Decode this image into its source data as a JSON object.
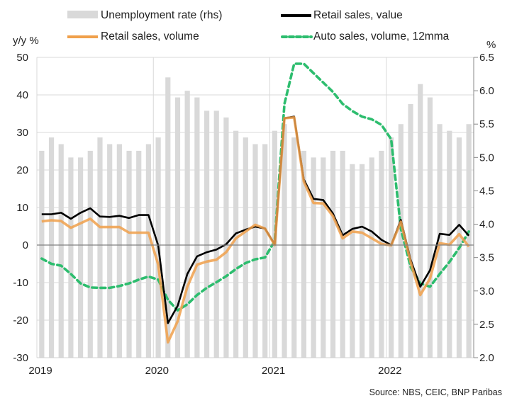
{
  "chart_data": {
    "type": "bar+line",
    "title": "",
    "source": "Source: NBS, CEIC, BNP Paribas",
    "left_axis": {
      "label": "y/y %",
      "range": [
        -30,
        50
      ],
      "ticks": [
        "50",
        "40",
        "30",
        "20",
        "10",
        "0",
        "-10",
        "-20",
        "-30"
      ]
    },
    "right_axis": {
      "label": "%",
      "range": [
        2.0,
        6.5
      ],
      "ticks": [
        "6.5",
        "6.0",
        "5.5",
        "5.0",
        "4.5",
        "4.0",
        "3.5",
        "3.0",
        "2.5",
        "2.0"
      ]
    },
    "x_axis": {
      "start": "2019-01",
      "months": 45,
      "tick_labels": [
        "2019",
        "2020",
        "2021",
        "2022"
      ]
    },
    "grid": true,
    "legend_placement": "top",
    "series": [
      {
        "name": "Unemployment rate (rhs)",
        "type": "bar",
        "axis": "right",
        "color": "#d9d9d9",
        "values": [
          5.1,
          5.3,
          5.2,
          5.0,
          5.0,
          5.1,
          5.3,
          5.2,
          5.2,
          5.1,
          5.1,
          5.2,
          5.3,
          6.2,
          5.9,
          6.0,
          5.9,
          5.7,
          5.7,
          5.6,
          5.4,
          5.3,
          5.2,
          5.2,
          5.4,
          5.5,
          5.3,
          5.1,
          5.0,
          5.0,
          5.1,
          5.1,
          4.9,
          4.9,
          5.0,
          5.1,
          5.3,
          5.5,
          5.8,
          6.1,
          5.9,
          5.5,
          5.4,
          5.3,
          5.5
        ]
      },
      {
        "name": "Retail sales, value",
        "type": "line",
        "axis": "left",
        "color": "#000000",
        "values": [
          8.2,
          8.2,
          8.6,
          7.0,
          8.6,
          9.8,
          7.6,
          7.5,
          7.8,
          7.2,
          8.0,
          8.0,
          -0.1,
          -20.8,
          -16.2,
          -7.7,
          -3.0,
          -1.9,
          -1.2,
          0.2,
          3.1,
          4.1,
          4.9,
          4.4,
          0.2,
          33.8,
          34.2,
          17.5,
          12.3,
          12.0,
          8.4,
          2.6,
          4.3,
          4.9,
          3.6,
          1.4,
          0.0,
          6.7,
          -3.9,
          -11.1,
          -6.7,
          3.0,
          2.7,
          5.4,
          2.5
        ]
      },
      {
        "name": "Retail sales, volume",
        "type": "line",
        "axis": "left",
        "color": "#f0a04b",
        "values": [
          6.3,
          6.6,
          6.4,
          4.6,
          5.8,
          7.0,
          4.8,
          4.8,
          4.8,
          3.3,
          3.3,
          3.3,
          -5.2,
          -25.9,
          -20.3,
          -11.1,
          -5.2,
          -4.4,
          -3.9,
          -1.9,
          1.8,
          3.6,
          5.4,
          4.4,
          0.0,
          33.8,
          34.0,
          16.9,
          11.2,
          11.1,
          7.7,
          1.8,
          3.6,
          3.3,
          1.8,
          0.3,
          -0.1,
          6.2,
          -4.5,
          -13.3,
          -8.9,
          0.5,
          0.1,
          2.9,
          -0.4
        ]
      },
      {
        "name": "Auto sales, volume, 12mma",
        "type": "line-dashed",
        "axis": "left",
        "color": "#2dbd6e",
        "values": [
          -3.6,
          -5.0,
          -5.5,
          -7.7,
          -10.2,
          -11.3,
          -11.4,
          -11.4,
          -10.9,
          -10.2,
          -9.2,
          -8.4,
          -9.2,
          -14.6,
          -17.4,
          -15.8,
          -13.3,
          -11.4,
          -9.9,
          -8.3,
          -6.4,
          -4.8,
          -3.8,
          -3.3,
          1.1,
          37.6,
          48.3,
          48.3,
          45.8,
          43.3,
          40.8,
          37.6,
          35.7,
          34.2,
          33.5,
          32.0,
          28.2,
          4.3,
          -5.8,
          -10.2,
          -11.1,
          -7.7,
          -4.5,
          -0.8,
          3.6
        ]
      }
    ]
  }
}
